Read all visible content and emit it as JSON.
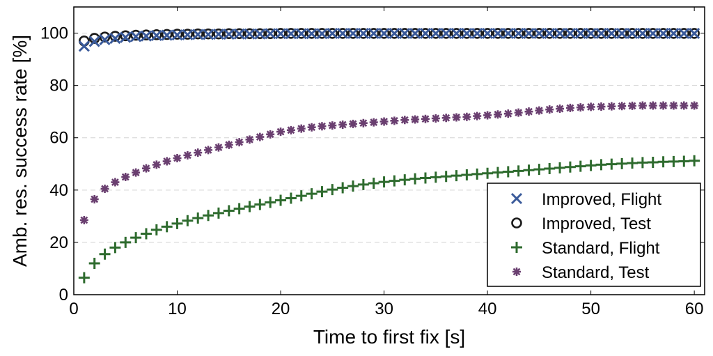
{
  "chart_data": {
    "type": "scatter",
    "title": "",
    "xlabel": "Time to first fix [s]",
    "ylabel": "Amb. res. success rate [%]",
    "xlim": [
      0,
      61
    ],
    "ylim": [
      0,
      110
    ],
    "x_ticks": [
      "0",
      "10",
      "20",
      "30",
      "40",
      "50",
      "60"
    ],
    "y_ticks": [
      "0",
      "20",
      "40",
      "60",
      "80",
      "100"
    ],
    "grid": "horizontal dashed",
    "legend_position": "bottom-right",
    "x": [
      1,
      2,
      3,
      4,
      5,
      6,
      7,
      8,
      9,
      10,
      11,
      12,
      13,
      14,
      15,
      16,
      17,
      18,
      19,
      20,
      21,
      22,
      23,
      24,
      25,
      26,
      27,
      28,
      29,
      30,
      31,
      32,
      33,
      34,
      35,
      36,
      37,
      38,
      39,
      40,
      41,
      42,
      43,
      44,
      45,
      46,
      47,
      48,
      49,
      50,
      51,
      52,
      53,
      54,
      55,
      56,
      57,
      58,
      59,
      60
    ],
    "series": [
      {
        "name": "Improved, Flight",
        "marker": "x",
        "color": "#3a5a9a",
        "values": [
          95.0,
          96.8,
          97.5,
          98.0,
          98.4,
          98.7,
          98.9,
          99.1,
          99.2,
          99.3,
          99.4,
          99.5,
          99.5,
          99.6,
          99.6,
          99.7,
          99.7,
          99.7,
          99.8,
          99.8,
          99.8,
          99.8,
          99.8,
          99.8,
          99.9,
          99.9,
          99.9,
          99.9,
          99.9,
          99.9,
          99.9,
          99.9,
          99.9,
          99.9,
          99.9,
          99.9,
          99.9,
          99.9,
          99.9,
          99.9,
          99.9,
          99.9,
          99.9,
          99.9,
          99.9,
          99.9,
          99.9,
          99.9,
          99.9,
          99.9,
          99.9,
          99.9,
          99.9,
          99.9,
          99.9,
          99.9,
          99.9,
          99.9,
          99.9,
          99.9
        ]
      },
      {
        "name": "Improved, Test",
        "marker": "o",
        "color": "#1a1a1a",
        "values": [
          97.0,
          98.0,
          98.5,
          98.8,
          99.0,
          99.2,
          99.3,
          99.4,
          99.5,
          99.6,
          99.6,
          99.7,
          99.7,
          99.7,
          99.8,
          99.8,
          99.8,
          99.8,
          99.8,
          99.9,
          99.9,
          99.9,
          99.9,
          99.9,
          99.9,
          99.9,
          99.9,
          99.9,
          99.9,
          99.9,
          99.9,
          99.9,
          99.9,
          99.9,
          99.9,
          99.9,
          99.9,
          99.9,
          99.9,
          99.9,
          99.9,
          99.9,
          99.9,
          99.9,
          99.9,
          99.9,
          99.9,
          99.9,
          99.9,
          99.9,
          99.9,
          99.9,
          99.9,
          99.9,
          99.9,
          99.9,
          99.9,
          99.9,
          99.9,
          99.9
        ]
      },
      {
        "name": "Standard, Flight",
        "marker": "+",
        "color": "#2e6b2e",
        "values": [
          6.5,
          12.0,
          15.5,
          18.0,
          20.0,
          21.8,
          23.3,
          24.8,
          26.0,
          27.2,
          28.3,
          29.3,
          30.3,
          31.2,
          32.1,
          32.9,
          33.7,
          34.5,
          35.3,
          36.1,
          36.9,
          37.8,
          38.6,
          39.4,
          40.2,
          40.9,
          41.5,
          42.1,
          42.6,
          43.1,
          43.5,
          43.9,
          44.3,
          44.6,
          44.9,
          45.2,
          45.5,
          45.8,
          46.1,
          46.4,
          46.7,
          47.0,
          47.3,
          47.6,
          47.9,
          48.2,
          48.5,
          48.8,
          49.1,
          49.4,
          49.7,
          49.9,
          50.1,
          50.3,
          50.5,
          50.6,
          50.8,
          50.9,
          51.0,
          51.2
        ]
      },
      {
        "name": "Standard, Test",
        "marker": "*",
        "color": "#6a3f70",
        "values": [
          28.5,
          36.5,
          40.5,
          43.0,
          45.0,
          46.7,
          48.3,
          49.7,
          51.0,
          52.2,
          53.3,
          54.3,
          55.3,
          56.3,
          57.3,
          58.3,
          59.3,
          60.3,
          61.3,
          62.3,
          62.9,
          63.5,
          64.0,
          64.4,
          64.7,
          65.0,
          65.3,
          65.6,
          65.9,
          66.2,
          66.5,
          66.8,
          67.0,
          67.2,
          67.4,
          67.6,
          67.8,
          68.0,
          68.3,
          68.6,
          68.9,
          69.2,
          69.6,
          70.0,
          70.4,
          70.8,
          71.1,
          71.4,
          71.6,
          71.8,
          71.9,
          72.0,
          72.1,
          72.2,
          72.3,
          72.3,
          72.3,
          72.3,
          72.3,
          72.3
        ]
      }
    ]
  }
}
